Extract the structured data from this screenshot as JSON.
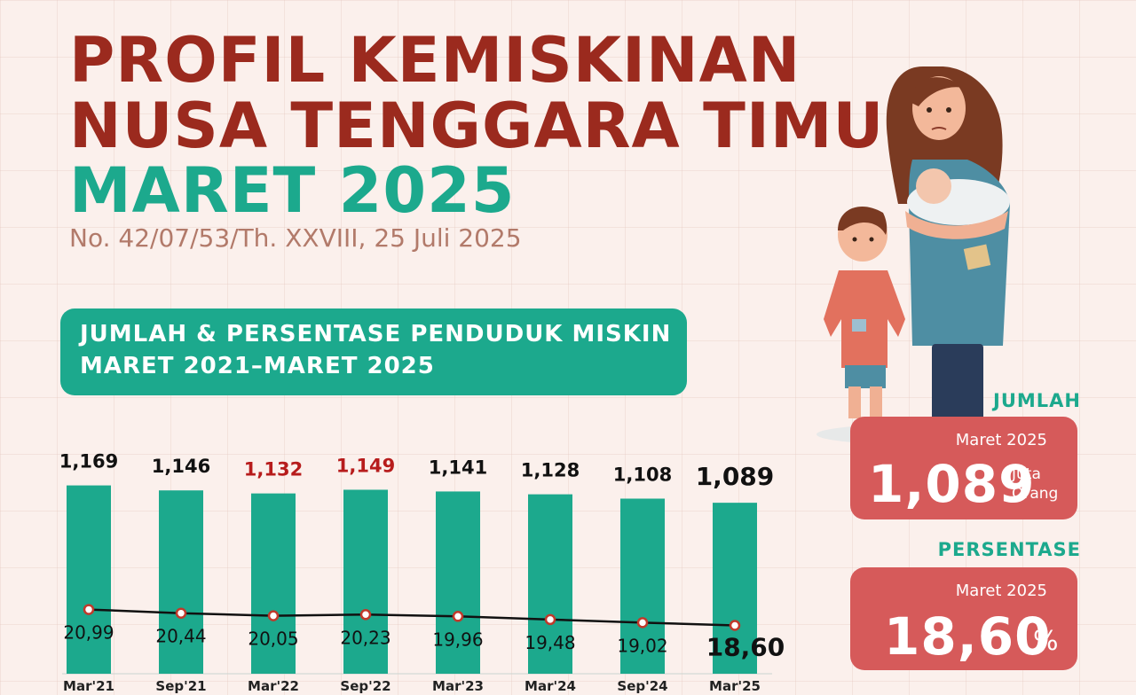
{
  "header": {
    "title_line1": "PROFIL KEMISKINAN",
    "title_line2": "NUSA TENGGARA TIMUR",
    "title_line3": "MARET 2025",
    "subtitle": "No. 42/07/53/Th. XXVIII, 25 Juli 2025"
  },
  "section": {
    "line1": "JUMLAH & PERSENTASE PENDUDUK MISKIN",
    "line2": "MARET 2021–MARET 2025"
  },
  "stats": {
    "jumlah_label": "JUMLAH",
    "jumlah_period": "Maret 2025",
    "jumlah_value": "1,089",
    "jumlah_unit_line1": "Juta",
    "jumlah_unit_line2": "Orang",
    "persen_label": "PERSENTASE",
    "persen_period": "Maret 2025",
    "persen_value": "18,60",
    "persen_unit": "%"
  },
  "colors": {
    "bar": "#1ca98d",
    "title_red": "#9b2a1e",
    "highlight_red": "#b71c1c",
    "card": "#d65a5a",
    "line": "#111111",
    "marker": "#c0392b"
  },
  "chart_data": {
    "type": "bar",
    "categories": [
      "Mar'21",
      "Sep'21",
      "Mar'22",
      "Sep'22",
      "Mar'23",
      "Mar'24",
      "Sep'24",
      "Mar'25"
    ],
    "series": [
      {
        "type": "bar",
        "values": [
          1.169,
          1.146,
          1.132,
          1.149,
          1.141,
          1.128,
          1.108,
          1.089
        ],
        "labels": [
          "1,169",
          "1,146",
          "1,132",
          "1,149",
          "1,141",
          "1,128",
          "1,108",
          "1,089"
        ],
        "label_colors": [
          "#111111",
          "#111111",
          "#b71c1c",
          "#b71c1c",
          "#111111",
          "#111111",
          "#111111",
          "#111111"
        ],
        "unit": "Juta Orang"
      },
      {
        "type": "line",
        "values": [
          20.99,
          20.44,
          20.05,
          20.23,
          19.96,
          19.48,
          19.02,
          18.6
        ],
        "labels": [
          "20,99",
          "20,44",
          "20,05",
          "20,23",
          "19,96",
          "19,48",
          "19,02",
          "18,60"
        ],
        "unit": "%"
      }
    ],
    "title": "JUMLAH & PERSENTASE PENDUDUK MISKIN MARET 2021–MARET 2025",
    "xlabel": "",
    "ylabel": "",
    "grid": false
  }
}
